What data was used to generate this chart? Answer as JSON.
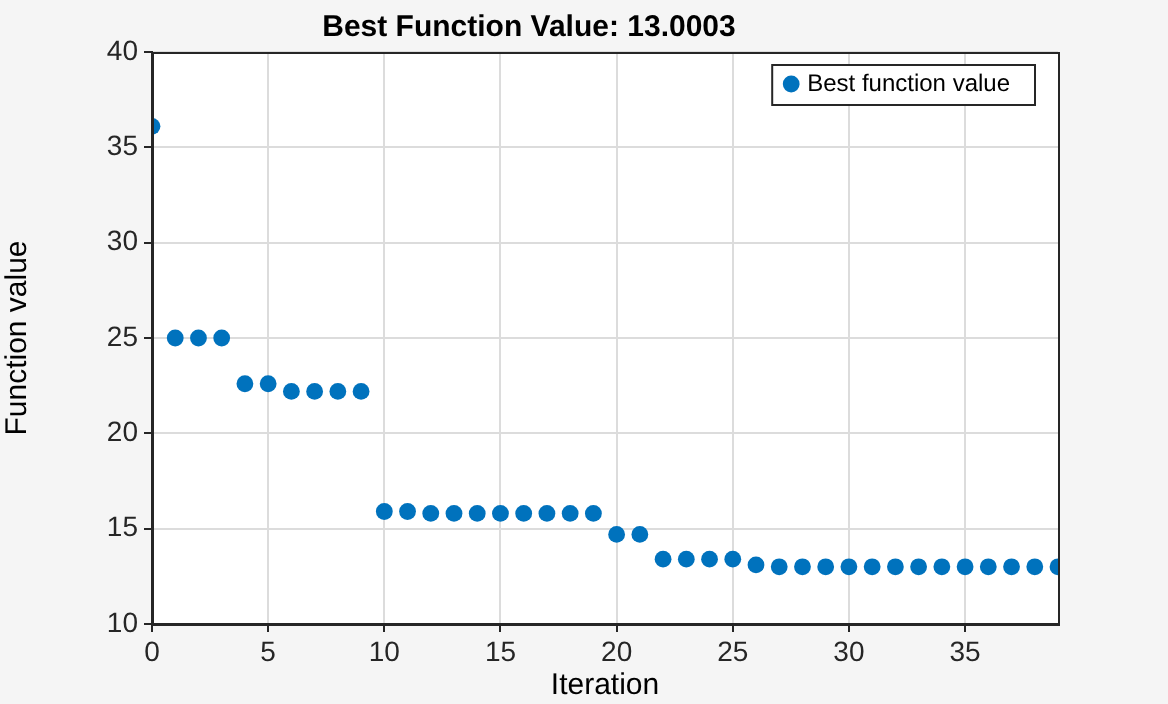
{
  "chart_data": {
    "type": "scatter",
    "title": "Best Function Value: 13.0003",
    "xlabel": "Iteration",
    "ylabel": "Function value",
    "x": [
      0,
      1,
      2,
      3,
      4,
      5,
      6,
      7,
      8,
      9,
      10,
      11,
      12,
      13,
      14,
      15,
      16,
      17,
      18,
      19,
      20,
      21,
      22,
      23,
      24,
      25,
      26,
      27,
      28,
      29,
      30,
      31,
      32,
      33,
      34,
      35,
      36,
      37,
      38,
      39
    ],
    "series": [
      {
        "name": "Best function value",
        "color": "#0072bd",
        "values": [
          36.1,
          25.0,
          25.0,
          25.0,
          22.6,
          22.6,
          22.2,
          22.2,
          22.2,
          22.2,
          15.9,
          15.9,
          15.8,
          15.8,
          15.8,
          15.8,
          15.8,
          15.8,
          15.8,
          15.8,
          14.7,
          14.7,
          13.4,
          13.4,
          13.4,
          13.4,
          13.1,
          13.0,
          13.0,
          13.0,
          13.0,
          13.0,
          13.0,
          13.0,
          13.0,
          13.0,
          13.0,
          13.0,
          13.0,
          13.0
        ]
      }
    ],
    "xlim": [
      0,
      39
    ],
    "xticks": [
      0,
      5,
      10,
      15,
      20,
      25,
      30,
      35
    ],
    "ylim": [
      10,
      40
    ],
    "yticks": [
      10,
      15,
      20,
      25,
      30,
      35,
      40
    ],
    "grid": true,
    "legend": "top right",
    "marker": "circle"
  }
}
